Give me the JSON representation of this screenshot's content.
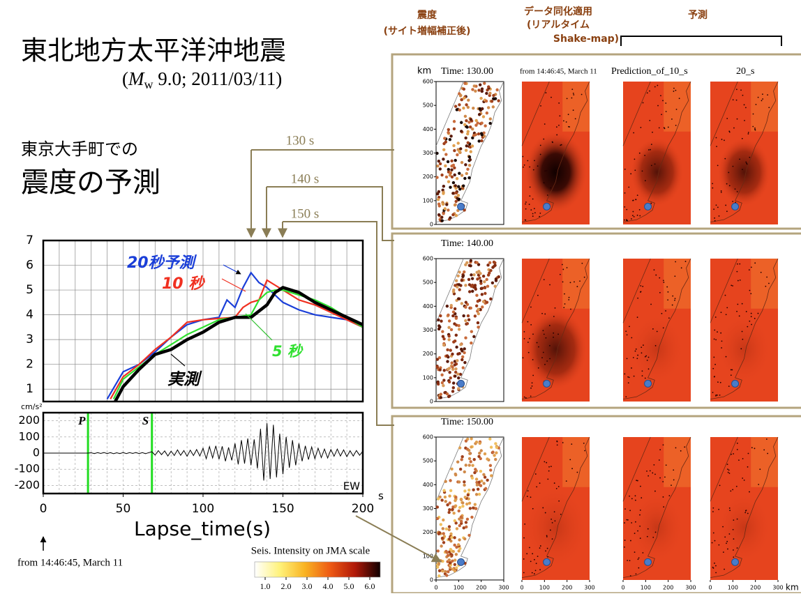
{
  "slide": {
    "title": "東北地方太平洋沖地震",
    "subtitle_parts": [
      "(",
      "M",
      "w",
      " 9.0;  2011/03/11)"
    ],
    "heading1": "東京大手町での",
    "heading2": "震度の予測",
    "callouts": [
      "130 s",
      "140 s",
      "150 s"
    ],
    "origin_note": "from 14:46:45, March 11"
  },
  "chart_data": [
    {
      "type": "line",
      "xlim": [
        0,
        200
      ],
      "ylim": [
        0.5,
        7
      ],
      "yticks": [
        1,
        2,
        3,
        4,
        5,
        6,
        7
      ],
      "xgrid": [
        0,
        10,
        20,
        30,
        40,
        50,
        60,
        70,
        80,
        90,
        100,
        110,
        120,
        130,
        140,
        150,
        160,
        170,
        180,
        190,
        200
      ],
      "grid": true,
      "series": [
        {
          "name": "20秒予測",
          "color": "#1a3ed8",
          "x": [
            40,
            50,
            60,
            70,
            80,
            90,
            100,
            110,
            115,
            120,
            125,
            130,
            135,
            140,
            150,
            160,
            170,
            180,
            190,
            200
          ],
          "values": [
            0.6,
            1.7,
            2.0,
            2.5,
            3.1,
            3.6,
            3.8,
            3.9,
            4.6,
            4.3,
            5.1,
            5.7,
            5.3,
            5.1,
            4.5,
            4.2,
            4.0,
            3.9,
            3.8,
            3.5
          ]
        },
        {
          "name": "10 秒",
          "color": "#f03020",
          "x": [
            42,
            50,
            60,
            70,
            80,
            90,
            100,
            110,
            120,
            125,
            130,
            135,
            140,
            145,
            150,
            160,
            170,
            180,
            190,
            200
          ],
          "values": [
            0.6,
            1.5,
            2.0,
            2.6,
            3.1,
            3.7,
            3.8,
            3.85,
            3.9,
            4.3,
            4.5,
            4.6,
            5.4,
            5.2,
            5.0,
            4.6,
            4.4,
            4.1,
            3.8,
            3.5
          ]
        },
        {
          "name": "5 秒",
          "color": "#30e030",
          "x": [
            44,
            50,
            60,
            70,
            80,
            90,
            100,
            110,
            120,
            130,
            135,
            140,
            145,
            150,
            160,
            170,
            180,
            190,
            200
          ],
          "values": [
            0.6,
            1.4,
            1.9,
            2.4,
            2.8,
            3.2,
            3.5,
            3.8,
            3.9,
            4.0,
            4.6,
            4.9,
            5.0,
            5.0,
            4.8,
            4.6,
            4.3,
            3.9,
            3.5
          ]
        },
        {
          "name": "実測",
          "color": "#000000",
          "x": [
            45,
            50,
            60,
            70,
            80,
            90,
            100,
            110,
            120,
            130,
            140,
            145,
            150,
            160,
            170,
            180,
            190,
            200
          ],
          "values": [
            0.5,
            1.1,
            1.8,
            2.4,
            2.6,
            3.0,
            3.3,
            3.7,
            3.9,
            3.9,
            4.4,
            4.9,
            5.1,
            4.9,
            4.5,
            4.2,
            3.9,
            3.6
          ]
        }
      ]
    },
    {
      "type": "waveform",
      "xlim": [
        0,
        200
      ],
      "ylim": [
        -250,
        250
      ],
      "xticks": [
        0,
        50,
        100,
        150,
        200
      ],
      "yticks": [
        -200,
        -100,
        0,
        100,
        200
      ],
      "xgrid": [
        0,
        10,
        20,
        30,
        40,
        50,
        60,
        70,
        80,
        90,
        100,
        110,
        120,
        130,
        140,
        150,
        160,
        170,
        180,
        190,
        200
      ],
      "grid": true,
      "y_unit": "cm/s²",
      "x_unit": "s",
      "xlabel": "Lapse_time(s)",
      "channel": "EW",
      "color": "#000000",
      "markers": [
        {
          "label": "P",
          "x": 28,
          "color": "#22dd22"
        },
        {
          "label": "S",
          "x": 68,
          "color": "#22dd22"
        }
      ],
      "x": [
        0,
        2,
        4,
        6,
        8,
        10,
        12,
        14,
        16,
        18,
        20,
        22,
        24,
        26,
        28,
        30,
        32,
        34,
        36,
        38,
        40,
        42,
        44,
        46,
        48,
        50,
        52,
        54,
        56,
        58,
        60,
        62,
        64,
        66,
        68,
        70,
        72,
        74,
        76,
        78,
        80,
        82,
        84,
        86,
        88,
        90,
        92,
        94,
        96,
        98,
        100,
        102,
        104,
        106,
        108,
        110,
        112,
        114,
        116,
        118,
        120,
        122,
        124,
        126,
        128,
        130,
        132,
        134,
        136,
        138,
        140,
        142,
        144,
        146,
        148,
        150,
        152,
        154,
        156,
        158,
        160,
        162,
        164,
        166,
        168,
        170,
        172,
        174,
        176,
        178,
        180,
        182,
        184,
        186,
        188,
        190,
        192,
        194,
        196,
        198,
        200
      ],
      "values": [
        0,
        0,
        0,
        0,
        0,
        0,
        0,
        0,
        0,
        0,
        0,
        0,
        0,
        0,
        0,
        2,
        -3,
        3,
        -2,
        4,
        -3,
        3,
        -4,
        2,
        -3,
        4,
        -3,
        3,
        -2,
        4,
        -3,
        3,
        -4,
        3,
        8,
        -12,
        15,
        -10,
        14,
        -18,
        12,
        -15,
        20,
        -14,
        16,
        -20,
        18,
        -15,
        22,
        -18,
        30,
        -35,
        40,
        -30,
        45,
        -38,
        42,
        -50,
        35,
        -45,
        60,
        -70,
        80,
        -65,
        90,
        -75,
        85,
        -95,
        150,
        -170,
        185,
        -160,
        175,
        -150,
        120,
        -130,
        100,
        -90,
        80,
        -75,
        60,
        -50,
        45,
        -40,
        38,
        -35,
        30,
        -28,
        25,
        -30,
        22,
        -20,
        25,
        -18,
        20,
        -22,
        15,
        -18,
        16,
        -14,
        12
      ]
    }
  ],
  "colorbar": {
    "title": "Seis. Intensity on JMA scale",
    "lim": [
      0.5,
      6.5
    ],
    "ticks": [
      {
        "value": 1,
        "label": "1.0"
      },
      {
        "value": 2,
        "label": "2.0"
      },
      {
        "value": 3,
        "label": "3.0"
      },
      {
        "value": 4,
        "label": "4.0"
      },
      {
        "value": 5,
        "label": "5.0"
      },
      {
        "value": 6,
        "label": "6.0"
      }
    ]
  },
  "maps": {
    "headers": [
      [
        "震度",
        "(サイト増幅補正後)"
      ],
      [
        "データ同化適用",
        "(リアルタイム",
        "Shake-map)"
      ],
      [
        "予測"
      ]
    ],
    "row_times": [
      "Time: 130.00",
      "Time: 140.00",
      "Time: 150.00"
    ],
    "top_labels": [
      "from 14:46:45, March 11",
      "Prediction_of_10_s",
      "20_s"
    ],
    "xlim": [
      0,
      300
    ],
    "ylim": [
      0,
      600
    ],
    "xticks": [
      0,
      100,
      200,
      300
    ],
    "yticks": [
      0,
      100,
      200,
      300,
      400,
      500,
      600
    ],
    "y_unit": "km",
    "x_unit": "km"
  }
}
